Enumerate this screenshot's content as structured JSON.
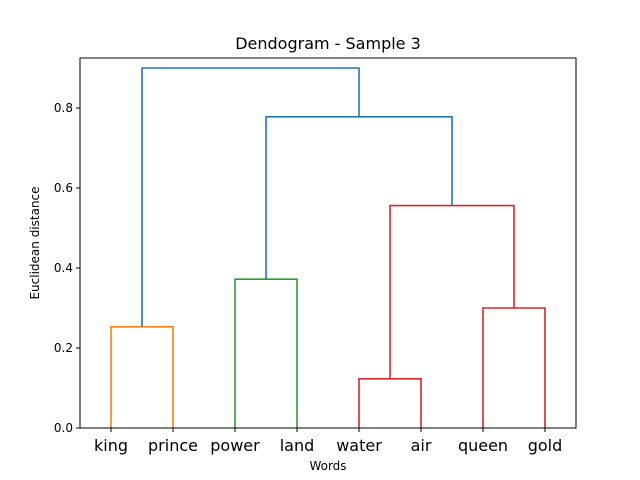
{
  "chart_data": {
    "type": "dendrogram",
    "title": "Dendogram - Sample 3",
    "xlabel": "Words",
    "ylabel": "Euclidean distance",
    "ylim": [
      0,
      0.925
    ],
    "yticks": [
      0.0,
      0.2,
      0.4,
      0.6,
      0.8
    ],
    "ytick_labels": [
      "0.0",
      "0.2",
      "0.4",
      "0.6",
      "0.8"
    ],
    "leaves": [
      "king",
      "prince",
      "power",
      "land",
      "water",
      "air",
      "queen",
      "gold"
    ],
    "merges": [
      {
        "left": "leaf:king",
        "right": "leaf:prince",
        "height": 0.253,
        "color": "#ff7f0e"
      },
      {
        "left": "leaf:power",
        "right": "leaf:land",
        "height": 0.372,
        "color": "#2ca02c"
      },
      {
        "left": "leaf:water",
        "right": "leaf:air",
        "height": 0.123,
        "color": "#d62728"
      },
      {
        "left": "leaf:queen",
        "right": "leaf:gold",
        "height": 0.3,
        "color": "#d62728"
      },
      {
        "left": "merge:2",
        "right": "merge:3",
        "height": 0.556,
        "color": "#d62728"
      },
      {
        "left": "merge:1",
        "right": "merge:4",
        "height": 0.778,
        "color": "#1f77b4"
      },
      {
        "left": "merge:0",
        "right": "merge:5",
        "height": 0.9,
        "color": "#1f77b4"
      }
    ],
    "grid": false
  }
}
